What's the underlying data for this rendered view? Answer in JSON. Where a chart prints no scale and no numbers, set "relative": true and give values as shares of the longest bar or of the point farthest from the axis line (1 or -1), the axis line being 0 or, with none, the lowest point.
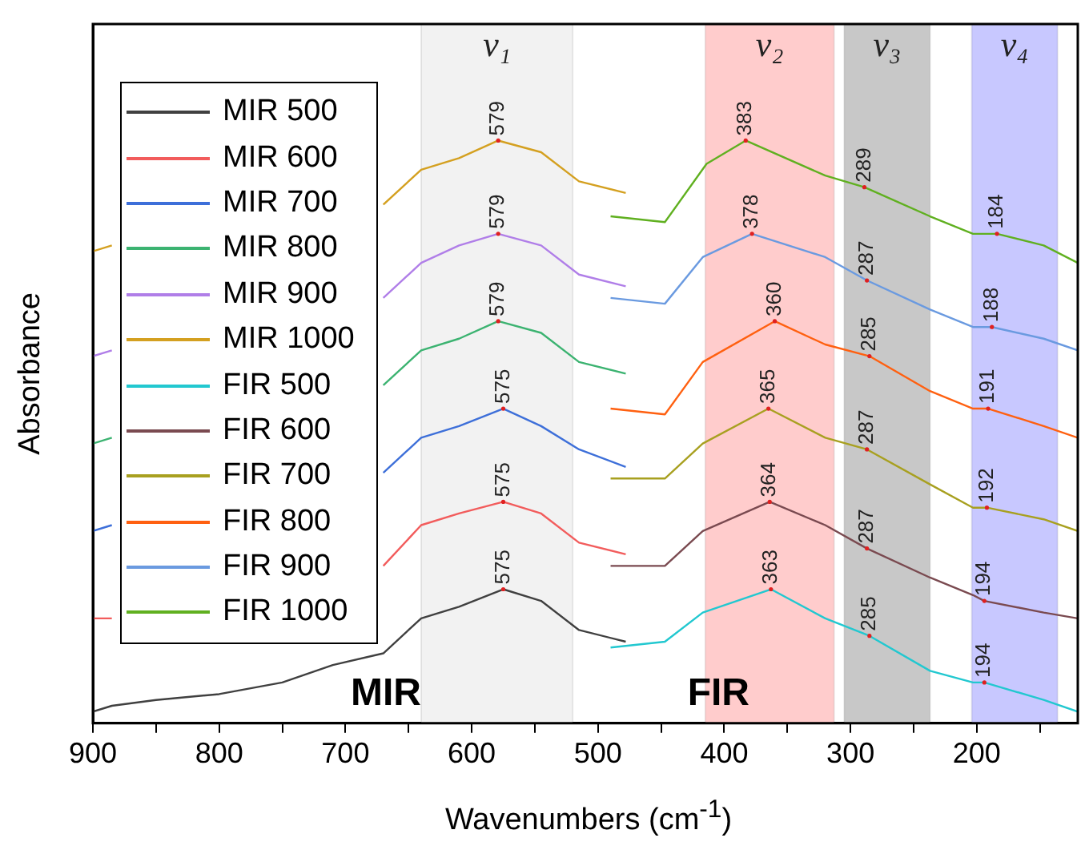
{
  "chart_data": {
    "type": "line",
    "relative": true,
    "xlabel": "Wavenumbers (cm$^{-1}$)",
    "ylabel": "Absorbance",
    "xlim": [
      900,
      120
    ],
    "xticks": [
      900,
      {
        "value": 850,
        "label": null
      },
      800,
      {
        "value": 750,
        "label": null
      },
      700,
      {
        "value": 650,
        "label": null
      },
      600,
      {
        "value": 550,
        "label": null
      },
      500,
      {
        "value": 450,
        "label": null
      },
      400,
      {
        "value": 350,
        "label": null
      },
      300,
      {
        "value": 250,
        "label": null
      },
      200,
      {
        "value": 150,
        "label": null
      }
    ],
    "tick_labels": "x",
    "grid": false,
    "legend": "top left",
    "series": [
      {
        "name": "MIR 500",
        "color": "#404040",
        "x": [
          900,
          885,
          850,
          800,
          750,
          710,
          670,
          640,
          610,
          575,
          545,
          515,
          478
        ],
        "values": [
          0.02,
          0.03,
          0.04,
          0.05,
          0.07,
          0.1,
          0.12,
          0.18,
          0.2,
          0.23,
          0.21,
          0.16,
          0.14
        ]
      },
      {
        "name": "MIR 600",
        "color": "#f25c5c",
        "x": [
          900,
          885,
          850,
          800,
          750,
          710,
          670,
          640,
          610,
          575,
          545,
          515,
          478
        ],
        "values": [
          0.18,
          0.18,
          null,
          null,
          null,
          null,
          0.27,
          0.34,
          0.36,
          0.38,
          0.36,
          0.31,
          0.29
        ]
      },
      {
        "name": "MIR 700",
        "color": "#3d6fd9",
        "x": [
          900,
          885,
          850,
          800,
          750,
          710,
          670,
          640,
          610,
          575,
          545,
          515,
          478
        ],
        "values": [
          0.33,
          0.34,
          null,
          null,
          null,
          null,
          0.43,
          0.49,
          0.51,
          0.54,
          0.51,
          0.47,
          0.44
        ]
      },
      {
        "name": "MIR 800",
        "color": "#3cb371",
        "x": [
          900,
          885,
          850,
          800,
          750,
          710,
          670,
          640,
          610,
          579,
          545,
          515,
          478
        ],
        "values": [
          0.48,
          0.49,
          null,
          null,
          null,
          null,
          0.58,
          0.64,
          0.66,
          0.69,
          0.67,
          0.62,
          0.6
        ]
      },
      {
        "name": "MIR 900",
        "color": "#b07ee8",
        "x": [
          900,
          885,
          850,
          800,
          750,
          710,
          670,
          640,
          610,
          579,
          545,
          515,
          478
        ],
        "values": [
          0.63,
          0.64,
          null,
          null,
          null,
          null,
          0.73,
          0.79,
          0.82,
          0.84,
          0.82,
          0.77,
          0.75
        ]
      },
      {
        "name": "MIR 1000",
        "color": "#d4a020",
        "x": [
          900,
          885,
          850,
          800,
          750,
          710,
          670,
          640,
          610,
          579,
          545,
          515,
          478
        ],
        "values": [
          0.81,
          0.82,
          null,
          null,
          null,
          null,
          0.89,
          0.95,
          0.97,
          1.0,
          0.98,
          0.93,
          0.91
        ]
      },
      {
        "name": "FIR 500",
        "color": "#22c8d0",
        "x": [
          490,
          447,
          417,
          363,
          320,
          285,
          237,
          203,
          194,
          147,
          120
        ],
        "values": [
          0.13,
          0.14,
          0.19,
          0.23,
          0.18,
          0.15,
          0.09,
          0.07,
          0.07,
          0.04,
          0.02
        ]
      },
      {
        "name": "FIR 600",
        "color": "#7a4a50",
        "x": [
          490,
          447,
          417,
          364,
          320,
          287,
          237,
          203,
          194,
          147,
          120
        ],
        "values": [
          0.27,
          0.27,
          0.33,
          0.38,
          0.34,
          0.3,
          0.25,
          0.22,
          0.21,
          0.19,
          0.18
        ]
      },
      {
        "name": "FIR 700",
        "color": "#a8a020",
        "x": [
          490,
          447,
          417,
          365,
          320,
          287,
          237,
          203,
          192,
          147,
          120
        ],
        "values": [
          0.42,
          0.42,
          0.48,
          0.54,
          0.49,
          0.47,
          0.41,
          0.37,
          0.37,
          0.35,
          0.33
        ]
      },
      {
        "name": "FIR 800",
        "color": "#ff6010",
        "x": [
          490,
          447,
          417,
          360,
          320,
          285,
          237,
          203,
          191,
          147,
          120
        ],
        "values": [
          0.54,
          0.53,
          0.62,
          0.69,
          0.65,
          0.63,
          0.57,
          0.54,
          0.54,
          0.51,
          0.49
        ]
      },
      {
        "name": "FIR 900",
        "color": "#6a9ae0",
        "x": [
          490,
          447,
          417,
          378,
          320,
          287,
          237,
          203,
          188,
          147,
          120
        ],
        "values": [
          0.73,
          0.72,
          0.8,
          0.84,
          0.8,
          0.76,
          0.71,
          0.68,
          0.68,
          0.66,
          0.64
        ]
      },
      {
        "name": "FIR 1000",
        "color": "#60b020",
        "x": [
          490,
          447,
          414,
          383,
          320,
          289,
          237,
          203,
          184,
          147,
          120
        ],
        "values": [
          0.87,
          0.86,
          0.96,
          1.0,
          0.94,
          0.92,
          0.87,
          0.84,
          0.84,
          0.82,
          0.79
        ]
      }
    ],
    "bands": [
      {
        "axis": "x",
        "from": 640,
        "to": 520,
        "label": "v₁",
        "color": "#f2f2f2"
      },
      {
        "axis": "x",
        "from": 415,
        "to": 313,
        "label": "v₂",
        "color": "#ffcccc"
      },
      {
        "axis": "x",
        "from": 305,
        "to": 237,
        "label": "v₃",
        "color": "#c8c8c8"
      },
      {
        "axis": "x",
        "from": 204,
        "to": 136,
        "label": "v₄",
        "color": "#c8c8ff"
      }
    ],
    "annotations": [
      {
        "text": "575",
        "x": 575,
        "y": 0.23
      },
      {
        "text": "575",
        "x": 575,
        "y": 0.38
      },
      {
        "text": "575",
        "x": 575,
        "y": 0.54
      },
      {
        "text": "579",
        "x": 579,
        "y": 0.69
      },
      {
        "text": "579",
        "x": 579,
        "y": 0.84
      },
      {
        "text": "579",
        "x": 579,
        "y": 1.0
      },
      {
        "text": "363",
        "x": 363,
        "y": 0.23
      },
      {
        "text": "285",
        "x": 285,
        "y": 0.15
      },
      {
        "text": "194",
        "x": 194,
        "y": 0.07
      },
      {
        "text": "364",
        "x": 364,
        "y": 0.38
      },
      {
        "text": "287",
        "x": 287,
        "y": 0.3
      },
      {
        "text": "194",
        "x": 194,
        "y": 0.21
      },
      {
        "text": "365",
        "x": 365,
        "y": 0.54
      },
      {
        "text": "287",
        "x": 287,
        "y": 0.47
      },
      {
        "text": "192",
        "x": 192,
        "y": 0.37
      },
      {
        "text": "360",
        "x": 360,
        "y": 0.69
      },
      {
        "text": "285",
        "x": 285,
        "y": 0.63
      },
      {
        "text": "191",
        "x": 191,
        "y": 0.54
      },
      {
        "text": "378",
        "x": 378,
        "y": 0.84
      },
      {
        "text": "287",
        "x": 287,
        "y": 0.76
      },
      {
        "text": "188",
        "x": 188,
        "y": 0.68
      },
      {
        "text": "383",
        "x": 383,
        "y": 1.0
      },
      {
        "text": "289",
        "x": 289,
        "y": 0.92
      },
      {
        "text": "184",
        "x": 184,
        "y": 0.84
      },
      "MIR",
      "FIR"
    ]
  }
}
